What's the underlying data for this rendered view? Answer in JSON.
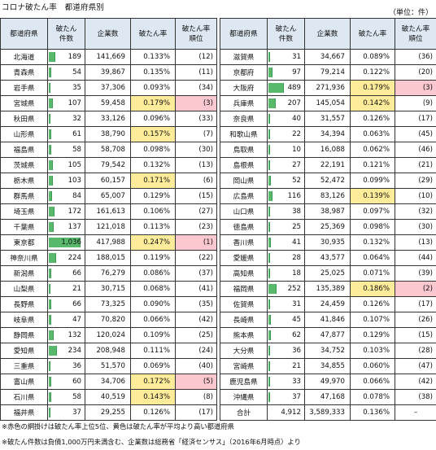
{
  "title": "コロナ破たん率　都道府県別",
  "unit": "（単位：件）",
  "headers": {
    "pref": "都道府県",
    "count": "破たん\n件数",
    "companies": "企業数",
    "rate": "破たん率",
    "rank": "破たん率\n順位"
  },
  "colors": {
    "bar": "#58b86b",
    "highlight_above_avg": "#ffec9b",
    "highlight_top5": "#fbc8cf",
    "header_bg": "#dde8f3"
  },
  "left_table": [
    {
      "pref": "北海道",
      "count": "189",
      "companies": "141,669",
      "rate": "0.133%",
      "rank": "(12)",
      "hl": "",
      "rhl": ""
    },
    {
      "pref": "青森県",
      "count": "54",
      "companies": "39,867",
      "rate": "0.135%",
      "rank": "(11)",
      "hl": "",
      "rhl": ""
    },
    {
      "pref": "岩手県",
      "count": "35",
      "companies": "37,306",
      "rate": "0.093%",
      "rank": "(34)",
      "hl": "",
      "rhl": ""
    },
    {
      "pref": "宮城県",
      "count": "107",
      "companies": "59,458",
      "rate": "0.179%",
      "rank": "(3)",
      "hl": "y",
      "rhl": "p"
    },
    {
      "pref": "秋田県",
      "count": "32",
      "companies": "33,126",
      "rate": "0.096%",
      "rank": "(33)",
      "hl": "",
      "rhl": ""
    },
    {
      "pref": "山形県",
      "count": "61",
      "companies": "38,790",
      "rate": "0.157%",
      "rank": "(7)",
      "hl": "y",
      "rhl": ""
    },
    {
      "pref": "福島県",
      "count": "58",
      "companies": "58,708",
      "rate": "0.098%",
      "rank": "(30)",
      "hl": "",
      "rhl": ""
    },
    {
      "pref": "茨城県",
      "count": "105",
      "companies": "79,542",
      "rate": "0.132%",
      "rank": "(13)",
      "hl": "",
      "rhl": ""
    },
    {
      "pref": "栃木県",
      "count": "103",
      "companies": "60,157",
      "rate": "0.171%",
      "rank": "(6)",
      "hl": "y",
      "rhl": ""
    },
    {
      "pref": "群馬県",
      "count": "84",
      "companies": "65,007",
      "rate": "0.129%",
      "rank": "(15)",
      "hl": "",
      "rhl": ""
    },
    {
      "pref": "埼玉県",
      "count": "172",
      "companies": "161,613",
      "rate": "0.106%",
      "rank": "(27)",
      "hl": "",
      "rhl": ""
    },
    {
      "pref": "千葉県",
      "count": "137",
      "companies": "121,018",
      "rate": "0.113%",
      "rank": "(23)",
      "hl": "",
      "rhl": ""
    },
    {
      "pref": "東京都",
      "count": "1,036",
      "companies": "417,988",
      "rate": "0.247%",
      "rank": "(1)",
      "hl": "y",
      "rhl": "p"
    },
    {
      "pref": "神奈川県",
      "count": "224",
      "companies": "188,015",
      "rate": "0.119%",
      "rank": "(22)",
      "hl": "",
      "rhl": ""
    },
    {
      "pref": "新潟県",
      "count": "66",
      "companies": "76,279",
      "rate": "0.086%",
      "rank": "(37)",
      "hl": "",
      "rhl": ""
    },
    {
      "pref": "山梨県",
      "count": "21",
      "companies": "30,715",
      "rate": "0.068%",
      "rank": "(41)",
      "hl": "",
      "rhl": ""
    },
    {
      "pref": "長野県",
      "count": "66",
      "companies": "73,325",
      "rate": "0.090%",
      "rank": "(35)",
      "hl": "",
      "rhl": ""
    },
    {
      "pref": "岐阜県",
      "count": "47",
      "companies": "70,820",
      "rate": "0.066%",
      "rank": "(42)",
      "hl": "",
      "rhl": ""
    },
    {
      "pref": "静岡県",
      "count": "132",
      "companies": "120,024",
      "rate": "0.109%",
      "rank": "(25)",
      "hl": "",
      "rhl": ""
    },
    {
      "pref": "愛知県",
      "count": "234",
      "companies": "208,948",
      "rate": "0.111%",
      "rank": "(24)",
      "hl": "",
      "rhl": ""
    },
    {
      "pref": "三重県",
      "count": "36",
      "companies": "51,570",
      "rate": "0.069%",
      "rank": "(40)",
      "hl": "",
      "rhl": ""
    },
    {
      "pref": "富山県",
      "count": "60",
      "companies": "34,706",
      "rate": "0.172%",
      "rank": "(5)",
      "hl": "y",
      "rhl": "p"
    },
    {
      "pref": "石川県",
      "count": "58",
      "companies": "40,519",
      "rate": "0.143%",
      "rank": "(8)",
      "hl": "y",
      "rhl": ""
    },
    {
      "pref": "福井県",
      "count": "37",
      "companies": "29,255",
      "rate": "0.126%",
      "rank": "(17)",
      "hl": "",
      "rhl": ""
    }
  ],
  "right_table": [
    {
      "pref": "滋賀県",
      "count": "31",
      "companies": "34,667",
      "rate": "0.089%",
      "rank": "(36)",
      "hl": "",
      "rhl": ""
    },
    {
      "pref": "京都府",
      "count": "97",
      "companies": "79,214",
      "rate": "0.122%",
      "rank": "(20)",
      "hl": "",
      "rhl": ""
    },
    {
      "pref": "大阪府",
      "count": "489",
      "companies": "271,936",
      "rate": "0.179%",
      "rank": "(3)",
      "hl": "y",
      "rhl": "p"
    },
    {
      "pref": "兵庫県",
      "count": "207",
      "companies": "145,054",
      "rate": "0.142%",
      "rank": "(9)",
      "hl": "y",
      "rhl": ""
    },
    {
      "pref": "奈良県",
      "count": "40",
      "companies": "31,557",
      "rate": "0.126%",
      "rank": "(17)",
      "hl": "",
      "rhl": ""
    },
    {
      "pref": "和歌山県",
      "count": "22",
      "companies": "34,394",
      "rate": "0.063%",
      "rank": "(45)",
      "hl": "",
      "rhl": ""
    },
    {
      "pref": "鳥取県",
      "count": "10",
      "companies": "16,088",
      "rate": "0.062%",
      "rank": "(46)",
      "hl": "",
      "rhl": ""
    },
    {
      "pref": "島根県",
      "count": "27",
      "companies": "22,191",
      "rate": "0.121%",
      "rank": "(21)",
      "hl": "",
      "rhl": ""
    },
    {
      "pref": "岡山県",
      "count": "52",
      "companies": "52,472",
      "rate": "0.099%",
      "rank": "(29)",
      "hl": "",
      "rhl": ""
    },
    {
      "pref": "広島県",
      "count": "116",
      "companies": "83,126",
      "rate": "0.139%",
      "rank": "(10)",
      "hl": "y",
      "rhl": ""
    },
    {
      "pref": "山口県",
      "count": "38",
      "companies": "38,987",
      "rate": "0.097%",
      "rank": "(32)",
      "hl": "",
      "rhl": ""
    },
    {
      "pref": "徳島県",
      "count": "25",
      "companies": "25,369",
      "rate": "0.098%",
      "rank": "(30)",
      "hl": "",
      "rhl": ""
    },
    {
      "pref": "香川県",
      "count": "41",
      "companies": "30,935",
      "rate": "0.132%",
      "rank": "(13)",
      "hl": "",
      "rhl": ""
    },
    {
      "pref": "愛媛県",
      "count": "28",
      "companies": "43,577",
      "rate": "0.064%",
      "rank": "(44)",
      "hl": "",
      "rhl": ""
    },
    {
      "pref": "高知県",
      "count": "18",
      "companies": "25,025",
      "rate": "0.071%",
      "rank": "(39)",
      "hl": "",
      "rhl": ""
    },
    {
      "pref": "福岡県",
      "count": "252",
      "companies": "135,389",
      "rate": "0.186%",
      "rank": "(2)",
      "hl": "y",
      "rhl": "p"
    },
    {
      "pref": "佐賀県",
      "count": "31",
      "companies": "24,459",
      "rate": "0.126%",
      "rank": "(17)",
      "hl": "",
      "rhl": ""
    },
    {
      "pref": "長崎県",
      "count": "45",
      "companies": "41,846",
      "rate": "0.107%",
      "rank": "(26)",
      "hl": "",
      "rhl": ""
    },
    {
      "pref": "熊本県",
      "count": "62",
      "companies": "47,877",
      "rate": "0.129%",
      "rank": "(15)",
      "hl": "",
      "rhl": ""
    },
    {
      "pref": "大分県",
      "count": "36",
      "companies": "34,752",
      "rate": "0.103%",
      "rank": "(28)",
      "hl": "",
      "rhl": ""
    },
    {
      "pref": "宮崎県",
      "count": "21",
      "companies": "34,855",
      "rate": "0.060%",
      "rank": "(47)",
      "hl": "",
      "rhl": ""
    },
    {
      "pref": "鹿児島県",
      "count": "33",
      "companies": "49,970",
      "rate": "0.066%",
      "rank": "(42)",
      "hl": "",
      "rhl": ""
    },
    {
      "pref": "沖縄県",
      "count": "37",
      "companies": "47,168",
      "rate": "0.078%",
      "rank": "(38)",
      "hl": "",
      "rhl": ""
    }
  ],
  "total": {
    "label": "合計",
    "count": "4,912",
    "companies": "3,589,333",
    "rate": "0.136%",
    "rank": "–"
  },
  "notes": [
    "※赤色の網掛けは破たん率上位5位、黄色は破たん率が平均より高い都道府県",
    "※破たん件数は負債1,000万円未満含む、企業数は総務省「経済センサス」（2016年6月時点）より"
  ]
}
